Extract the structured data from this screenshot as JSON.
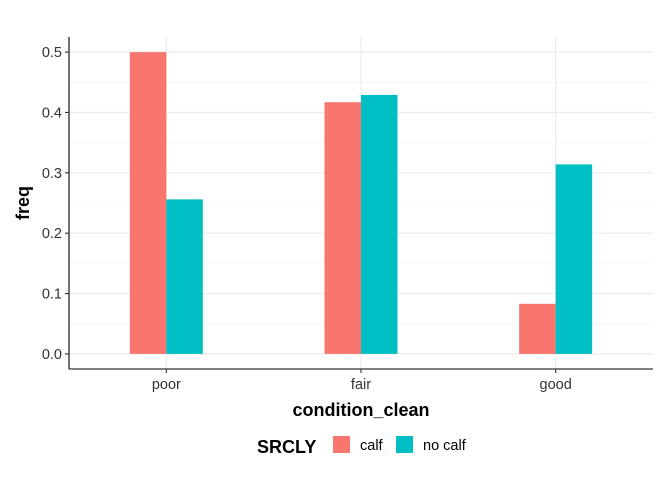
{
  "chart_data": {
    "type": "bar",
    "categories": [
      "poor",
      "fair",
      "good"
    ],
    "series": [
      {
        "name": "calf",
        "values": [
          0.5,
          0.417,
          0.083
        ],
        "color": "#F8766D"
      },
      {
        "name": "no calf",
        "values": [
          0.256,
          0.429,
          0.314
        ],
        "color": "#00BFC4"
      }
    ],
    "xlabel": "condition_clean",
    "ylabel": "freq",
    "ylim": [
      -0.025,
      0.525
    ],
    "yticks": [
      0.0,
      0.1,
      0.2,
      0.3,
      0.4,
      0.5
    ],
    "ytick_labels": [
      "0.0",
      "0.1",
      "0.2",
      "0.3",
      "0.4",
      "0.5"
    ],
    "grid": true,
    "legend": {
      "title": "SRCLY",
      "position": "bottom"
    }
  }
}
